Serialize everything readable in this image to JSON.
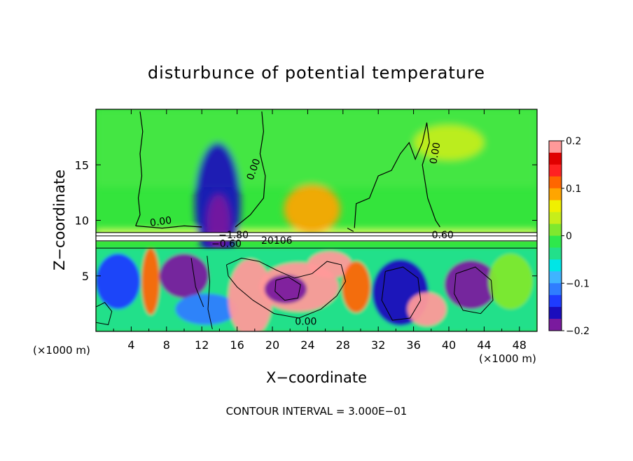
{
  "chart_data": {
    "type": "heatmap",
    "title": "disturbunce of potential temperature",
    "xlabel": "X−coordinate",
    "ylabel": "Z−coordinate",
    "x_unit": "(×1000 m)",
    "x_unit_right": "(×1000 m)",
    "xlim": [
      0,
      50
    ],
    "ylim": [
      0,
      20
    ],
    "x_ticks": [
      4,
      8,
      12,
      16,
      20,
      24,
      28,
      32,
      36,
      40,
      44,
      48
    ],
    "x_tick_labels": [
      "4",
      "8",
      "12",
      "16",
      "20",
      "24",
      "28",
      "32",
      "36",
      "40",
      "44",
      "48"
    ],
    "y_ticks": [
      5,
      10,
      15
    ],
    "y_tick_labels": [
      "5",
      "10",
      "15"
    ],
    "contour_interval_text": "CONTOUR INTERVAL = 3.000E−01",
    "contour_labels": [
      {
        "text": "0.00",
        "x": 7.4,
        "z": 9.6,
        "angle": -8
      },
      {
        "text": "0.00",
        "x": 18.2,
        "z": 14.5,
        "angle": -70
      },
      {
        "text": "0.00",
        "x": 38.8,
        "z": 16.0,
        "angle": -80
      },
      {
        "text": "0.60",
        "x": 39.3,
        "z": 8.4,
        "angle": 0
      },
      {
        "text": "−1.80",
        "x": 15.6,
        "z": 8.4,
        "angle": 0
      },
      {
        "text": "−0.60",
        "x": 14.8,
        "z": 7.6,
        "angle": 0
      },
      {
        "text": "20106",
        "x": 20.5,
        "z": 7.9,
        "angle": 0
      },
      {
        "text": "0.00",
        "x": 23.8,
        "z": 0.6,
        "angle": 0
      }
    ],
    "colorbar": {
      "min": -0.2,
      "max": 0.2,
      "tick_values": [
        -0.2,
        -0.1,
        0,
        0.1,
        0.2
      ],
      "tick_labels": [
        "−0.2",
        "−0.1",
        "0",
        "0.1",
        "0.2"
      ],
      "colors": [
        "#7a1a9e",
        "#1a0dbd",
        "#1e3cff",
        "#2f7dff",
        "#3fb4ff",
        "#00e6e6",
        "#22e08a",
        "#2ee84c",
        "#7fe82e",
        "#c7ee1a",
        "#f0f000",
        "#ffa500",
        "#ff6600",
        "#ff2222",
        "#e00000",
        "#ff9999"
      ]
    },
    "fields": {
      "background": "#34e43c",
      "regions": [
        {
          "name": "updraft-anomaly",
          "x": 13.8,
          "z": 11.5,
          "rx": 2.6,
          "rz": 5.5,
          "value": -0.17
        },
        {
          "name": "updraft-core",
          "x": 13.9,
          "z": 9.8,
          "rx": 1.3,
          "rz": 2.5,
          "value": -0.2
        },
        {
          "name": "warm-wave",
          "x": 24.5,
          "z": 11.0,
          "rx": 3.2,
          "rz": 2.2,
          "value": 0.08
        },
        {
          "name": "upper-warm",
          "x": 40.0,
          "z": 17.0,
          "rx": 4.0,
          "rz": 1.6,
          "value": 0.03
        }
      ],
      "lower_layer": [
        {
          "x": 2.5,
          "z": 4.5,
          "rx": 2.5,
          "rz": 2.5,
          "value": -0.15
        },
        {
          "x": 6.2,
          "z": 4.5,
          "rx": 1.0,
          "rz": 3.0,
          "value": 0.12
        },
        {
          "x": 10.0,
          "z": 5.0,
          "rx": 2.8,
          "rz": 2.0,
          "value": -0.18
        },
        {
          "x": 12.5,
          "z": 2.0,
          "rx": 3.5,
          "rz": 1.4,
          "value": -0.12
        },
        {
          "x": 17.5,
          "z": 3.0,
          "rx": 2.5,
          "rz": 3.5,
          "value": 0.2
        },
        {
          "x": 23.0,
          "z": 4.0,
          "rx": 4.5,
          "rz": 2.2,
          "value": 0.2
        },
        {
          "x": 21.5,
          "z": 3.8,
          "rx": 2.4,
          "rz": 1.3,
          "value": -0.19
        },
        {
          "x": 26.5,
          "z": 6.0,
          "rx": 2.5,
          "rz": 1.2,
          "value": 0.2
        },
        {
          "x": 29.5,
          "z": 4.0,
          "rx": 1.6,
          "rz": 2.3,
          "value": 0.11
        },
        {
          "x": 34.5,
          "z": 3.5,
          "rx": 3.2,
          "rz": 3.0,
          "value": -0.16
        },
        {
          "x": 37.5,
          "z": 2.0,
          "rx": 2.2,
          "rz": 1.5,
          "value": 0.2
        },
        {
          "x": 42.5,
          "z": 4.2,
          "rx": 3.0,
          "rz": 2.2,
          "value": -0.2
        },
        {
          "x": 47.0,
          "z": 4.5,
          "rx": 2.5,
          "rz": 2.5,
          "value": 0.02
        }
      ]
    }
  }
}
